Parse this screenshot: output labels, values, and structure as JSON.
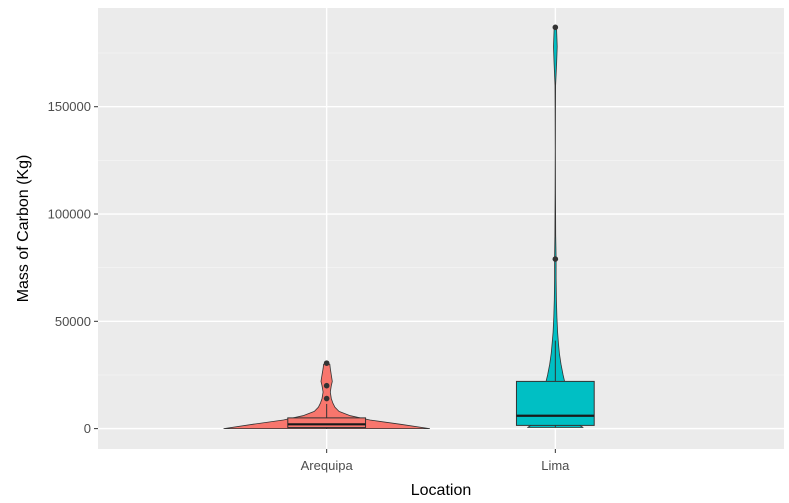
{
  "chart_data": {
    "type": "violin",
    "title": "",
    "xlabel": "Location",
    "ylabel": "Mass of Carbon (Kg)",
    "ylim": [
      -9500,
      196000
    ],
    "y_ticks": [
      0,
      50000,
      100000,
      150000
    ],
    "y_tick_labels": [
      "0",
      "50000",
      "100000",
      "150000"
    ],
    "grid": true,
    "legend": "none",
    "categories": [
      "Arequipa",
      "Lima"
    ],
    "series": [
      {
        "category": "Arequipa",
        "color": "#F8766D",
        "violin_density": [
          {
            "y": 0,
            "width": 1.0
          },
          {
            "y": 2000,
            "width": 0.72
          },
          {
            "y": 4000,
            "width": 0.42
          },
          {
            "y": 6000,
            "width": 0.23
          },
          {
            "y": 8000,
            "width": 0.12
          },
          {
            "y": 10000,
            "width": 0.08
          },
          {
            "y": 12000,
            "width": 0.06
          },
          {
            "y": 14000,
            "width": 0.045
          },
          {
            "y": 17000,
            "width": 0.035
          },
          {
            "y": 20000,
            "width": 0.045
          },
          {
            "y": 22000,
            "width": 0.055
          },
          {
            "y": 25000,
            "width": 0.045
          },
          {
            "y": 28000,
            "width": 0.035
          },
          {
            "y": 30000,
            "width": 0.03
          }
        ],
        "box": {
          "min": 0,
          "q1": 500,
          "median": 2000,
          "q3": 5000,
          "max": 11500
        },
        "outliers": [
          14000,
          20000,
          30500
        ]
      },
      {
        "category": "Lima",
        "color": "#00BFC4",
        "violin_density": [
          {
            "y": 500,
            "width": 0.27
          },
          {
            "y": 3000,
            "width": 0.19
          },
          {
            "y": 6000,
            "width": 0.15
          },
          {
            "y": 10000,
            "width": 0.13
          },
          {
            "y": 15000,
            "width": 0.115
          },
          {
            "y": 20000,
            "width": 0.1
          },
          {
            "y": 25000,
            "width": 0.075
          },
          {
            "y": 30000,
            "width": 0.055
          },
          {
            "y": 35000,
            "width": 0.04
          },
          {
            "y": 40000,
            "width": 0.03
          },
          {
            "y": 45000,
            "width": 0.022
          },
          {
            "y": 52000,
            "width": 0.015
          },
          {
            "y": 60000,
            "width": 0.01
          },
          {
            "y": 70000,
            "width": 0.007
          },
          {
            "y": 80000,
            "width": 0.007
          },
          {
            "y": 90000,
            "width": 0.004
          },
          {
            "y": 100000,
            "width": 0.003
          },
          {
            "y": 110000,
            "width": 0.002
          },
          {
            "y": 130000,
            "width": 0.001
          },
          {
            "y": 150000,
            "width": 0.002
          },
          {
            "y": 160000,
            "width": 0.003
          },
          {
            "y": 170000,
            "width": 0.012
          },
          {
            "y": 178000,
            "width": 0.018
          },
          {
            "y": 186000,
            "width": 0.012
          }
        ],
        "box": {
          "min": 500,
          "q1": 1500,
          "median": 6000,
          "q3": 22000,
          "max": 41000
        },
        "outliers": [
          79000,
          187000
        ]
      }
    ]
  }
}
